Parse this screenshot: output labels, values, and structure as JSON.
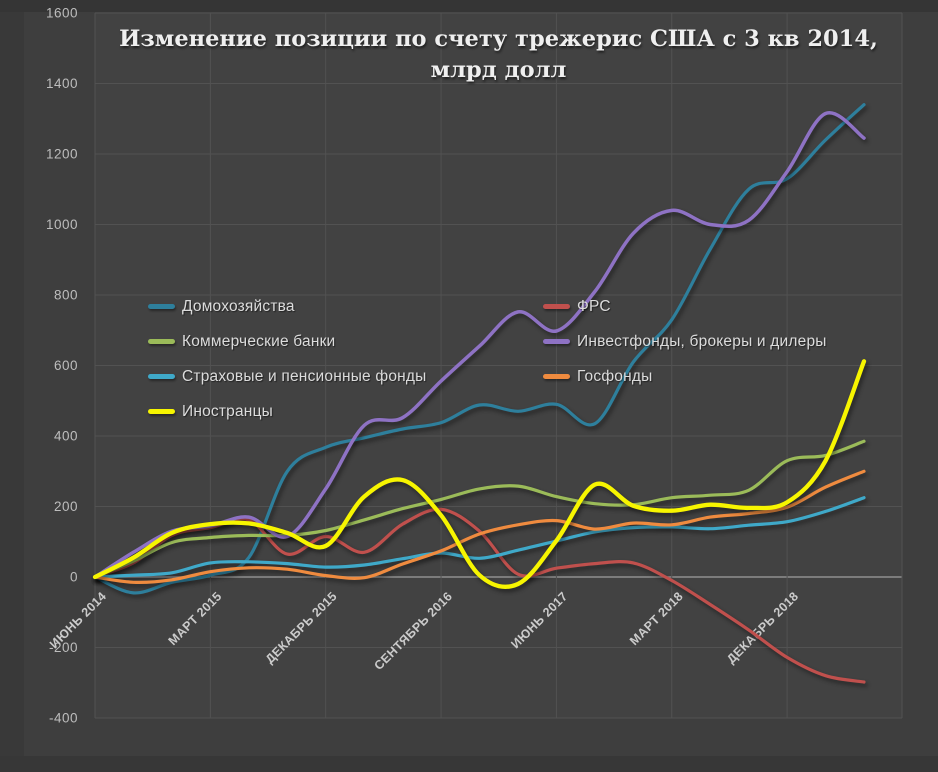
{
  "title": {
    "line1": "Изменение позиции по счету трежерис США с 3 кв 2014,",
    "line2": "млрд долл"
  },
  "colors": {
    "background": "#3e3e3e",
    "plot_background": "#424242",
    "gridline": "#525252",
    "zero_line": "#8f8f8f",
    "axis_text": "#bdbdbd",
    "x_axis_text": "#cbcbcb",
    "title_text": "#efefef",
    "legend_text": "#dcdcdc"
  },
  "chart_data": {
    "type": "line",
    "title": "Изменение позиции по счету трежерис США с 3 кв 2014, млрд долл",
    "xlabel": "",
    "ylabel": "млрд долл",
    "ylim": [
      -400,
      1600
    ],
    "grid": true,
    "legend_position": "inside-middle-left, two columns",
    "y_ticks": [
      1600,
      1400,
      1200,
      1000,
      800,
      600,
      400,
      200,
      0,
      -200,
      -400
    ],
    "x_tick_indexes": [
      0,
      3,
      6,
      9,
      12,
      15,
      18
    ],
    "x_tick_labels": [
      "ИЮНЬ 2014",
      "МАРТ 2015",
      "ДЕКАБРЬ 2015",
      "СЕНТЯБРЬ 2016",
      "ИЮНЬ 2017",
      "МАРТ 2018",
      "ДЕКАБРЬ 2018"
    ],
    "categories": [
      "ИЮНЬ 2014",
      "СЕНТЯБРЬ 2014",
      "ДЕКАБРЬ 2014",
      "МАРТ 2015",
      "ИЮНЬ 2015",
      "СЕНТЯБРЬ 2015",
      "ДЕКАБРЬ 2015",
      "МАРТ 2016",
      "ИЮНЬ 2016",
      "СЕНТЯБРЬ 2016",
      "ДЕКАБРЬ 2016",
      "МАРТ 2017",
      "ИЮНЬ 2017",
      "СЕНТЯБРЬ 2017",
      "ДЕКАБРЬ 2017",
      "МАРТ 2018",
      "ИЮНЬ 2018",
      "СЕНТЯБРЬ 2018",
      "ДЕКАБРЬ 2018",
      "МАРТ 2019",
      "ИЮНЬ 2019"
    ],
    "series": [
      {
        "name": "Домохозяйства",
        "color": "#2e7f9c",
        "values": [
          0,
          -45,
          -15,
          5,
          55,
          300,
          368,
          395,
          420,
          438,
          488,
          470,
          490,
          435,
          610,
          730,
          930,
          1100,
          1130,
          1240,
          1340
        ]
      },
      {
        "name": "ФРС",
        "color": "#c0504d",
        "values": [
          0,
          40,
          118,
          140,
          162,
          65,
          115,
          70,
          150,
          192,
          130,
          8,
          25,
          38,
          40,
          -10,
          -78,
          -150,
          -228,
          -280,
          -298
        ]
      },
      {
        "name": "Коммерческие банки",
        "color": "#9bbb59",
        "values": [
          0,
          45,
          98,
          112,
          118,
          118,
          132,
          162,
          194,
          220,
          250,
          258,
          228,
          208,
          205,
          225,
          232,
          246,
          330,
          345,
          385
        ]
      },
      {
        "name": "Инвестфонды, брокеры и дилеры",
        "color": "#8e72c4",
        "values": [
          0,
          70,
          130,
          145,
          170,
          115,
          250,
          430,
          452,
          556,
          655,
          752,
          698,
          810,
          975,
          1040,
          1000,
          1012,
          1150,
          1315,
          1245
        ]
      },
      {
        "name": "Страховые и пенсионные фонды",
        "color": "#3fa9c9",
        "values": [
          0,
          5,
          12,
          40,
          43,
          38,
          28,
          34,
          52,
          68,
          53,
          76,
          102,
          128,
          140,
          142,
          137,
          147,
          157,
          186,
          225
        ]
      },
      {
        "name": "Госфонды",
        "color": "#ef8b3f",
        "values": [
          0,
          -15,
          -8,
          15,
          26,
          22,
          4,
          -2,
          37,
          74,
          122,
          148,
          160,
          136,
          153,
          148,
          170,
          180,
          198,
          255,
          300
        ]
      },
      {
        "name": "Иностранцы",
        "color": "#f7f500",
        "values": [
          0,
          55,
          125,
          150,
          152,
          125,
          88,
          228,
          275,
          175,
          5,
          -20,
          103,
          262,
          202,
          188,
          205,
          196,
          212,
          330,
          612
        ]
      }
    ]
  }
}
